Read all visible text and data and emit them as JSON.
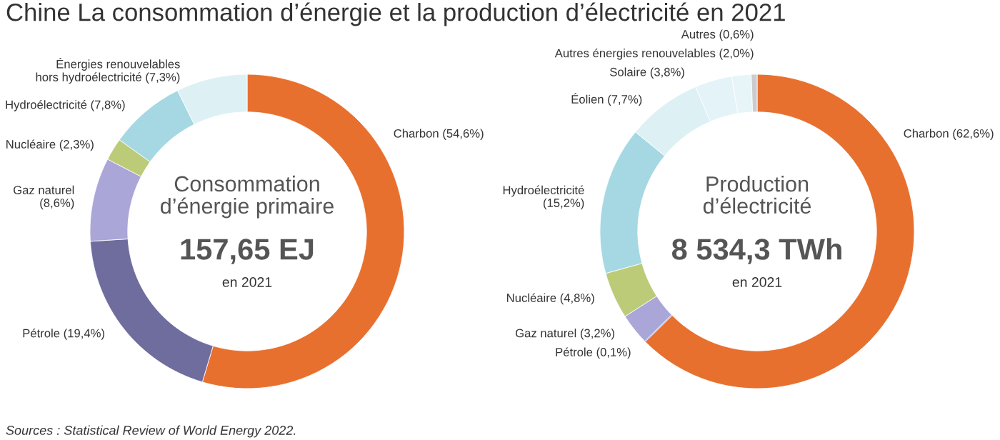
{
  "chart_data": [
    {
      "type": "donut",
      "title": "Chine La consommation d’énergie et la production d’électricité en 2021",
      "subtitle": "Consommation\nd’énergie primaire",
      "categories": [
        "Charbon (54,6%)",
        "Pétrole (19,4%)",
        "Gaz naturel\n(8,6%)",
        "Nucléaire (2,3%)",
        "Hydroélectricité (7,8%)",
        "Énergies renouvelables\nhors hydroélectricité (7,3%)"
      ],
      "values": [
        54.6,
        19.4,
        8.6,
        2.3,
        7.8,
        7.3
      ],
      "colors": [
        "#e8702f",
        "#6e6d9e",
        "#aaa6d8",
        "#bccb78",
        "#a5d8e2",
        "#ddf1f5"
      ],
      "annotations": [
        "157,65 EJ",
        "en 2021",
        "Sources : Statistical Review of World Energy 2022."
      ]
    },
    {
      "type": "donut",
      "subtitle": "Production\nd’électricité",
      "categories": [
        "Charbon (62,6%)",
        "Pétrole (0,1%)",
        "Gaz naturel (3,2%)",
        "Nucléaire (4,8%)",
        "Hydroélectricité\n(15,2%)",
        "Éolien (7,7%)",
        "Solaire (3,8%)",
        "Autres énergies renouvelables (2,0%)",
        "Autres (0,6%)"
      ],
      "values": [
        62.6,
        0.1,
        3.2,
        4.8,
        15.2,
        7.7,
        3.8,
        2.0,
        0.6
      ],
      "colors": [
        "#e8702f",
        "#6e6d9e",
        "#aaa6d8",
        "#bccb78",
        "#a5d8e2",
        "#ddf1f5",
        "#e3f3f7",
        "#e8f5f8",
        "#cccccc"
      ],
      "annotations": [
        "8 534,3 TWh",
        "en 2021"
      ]
    }
  ]
}
